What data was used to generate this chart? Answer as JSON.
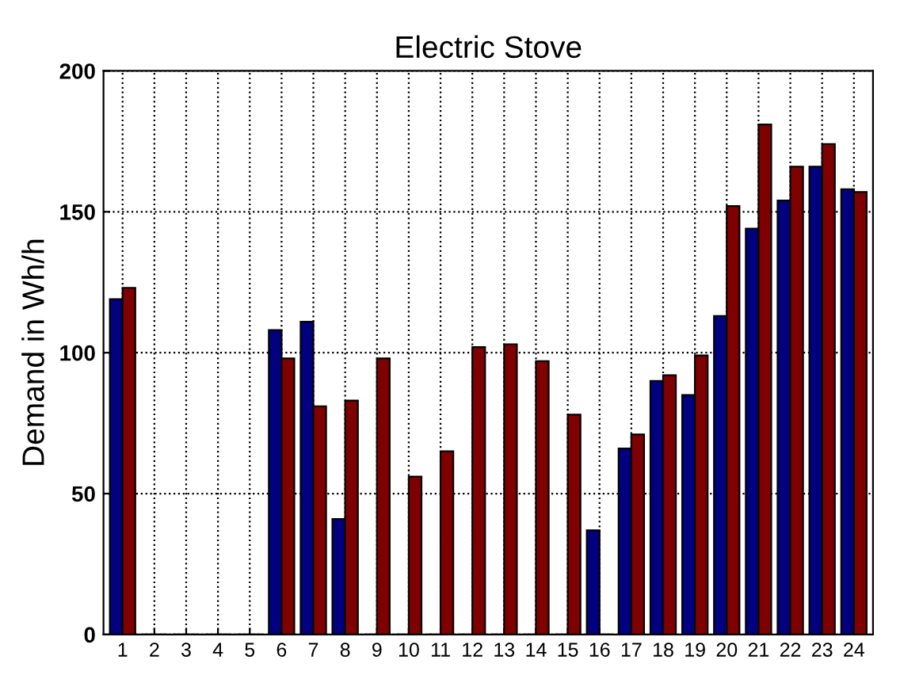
{
  "chart_data": {
    "type": "bar",
    "title": "Electric Stove",
    "ylabel": "Demand in Wh/h",
    "categories": [
      "1",
      "2",
      "3",
      "4",
      "5",
      "6",
      "7",
      "8",
      "9",
      "10",
      "11",
      "12",
      "13",
      "14",
      "15",
      "16",
      "17",
      "18",
      "19",
      "20",
      "21",
      "22",
      "23",
      "24"
    ],
    "series": [
      {
        "color": "#000080",
        "values": [
          119,
          0,
          0,
          0,
          0,
          108,
          111,
          41,
          0,
          0,
          0,
          0,
          0,
          0,
          0,
          37,
          66,
          90,
          85,
          113,
          144,
          154,
          166,
          158
        ]
      },
      {
        "color": "#800000",
        "values": [
          123,
          0,
          0,
          0,
          0,
          98,
          81,
          83,
          98,
          56,
          65,
          102,
          103,
          97,
          78,
          0,
          71,
          92,
          99,
          152,
          181,
          166,
          174,
          157
        ]
      }
    ],
    "ylim": [
      0,
      200
    ],
    "yticks": [
      0,
      50,
      100,
      150,
      200
    ],
    "grid": true,
    "line_style": "dotted"
  }
}
